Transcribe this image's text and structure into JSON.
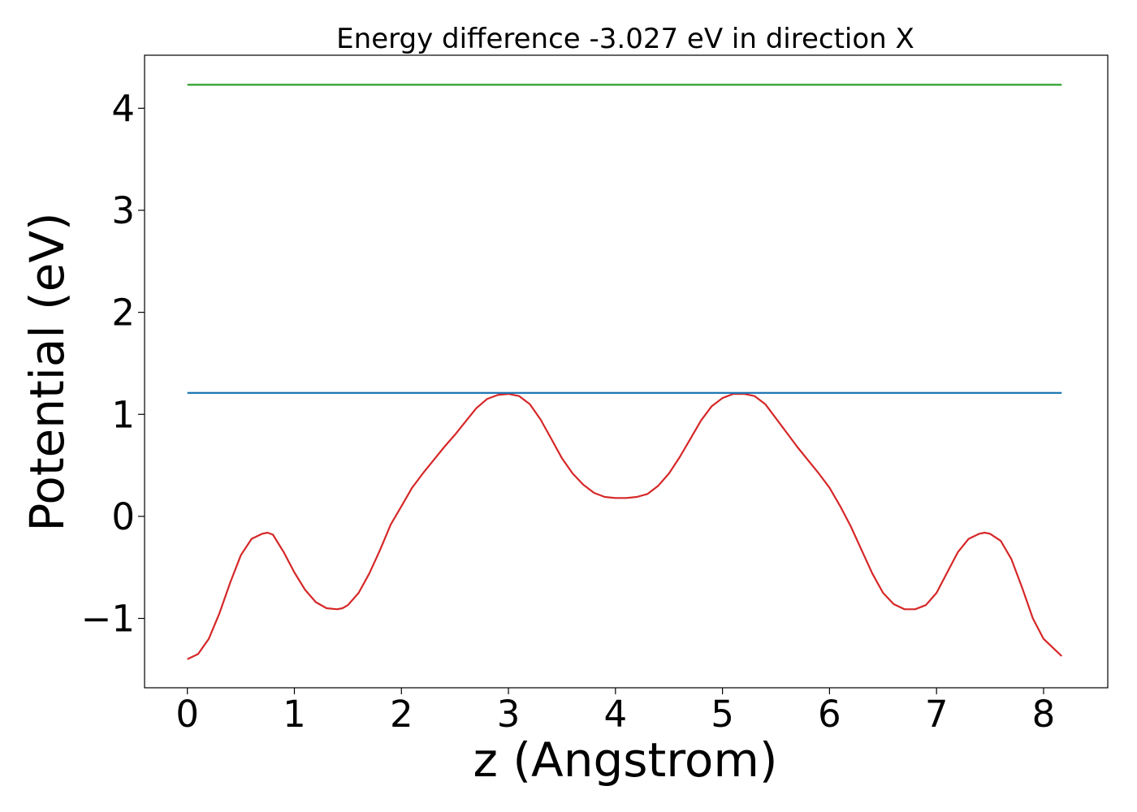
{
  "chart_data": {
    "type": "line",
    "title": "Energy difference -3.027 eV in direction X",
    "xlabel": "z (Angstrom)",
    "ylabel": "Potential (eV)",
    "xlim": [
      -0.4,
      8.6
    ],
    "ylim": [
      -1.68,
      4.52
    ],
    "xticks": [
      0,
      1,
      2,
      3,
      4,
      5,
      6,
      7,
      8
    ],
    "xtick_labels": [
      "0",
      "1",
      "2",
      "3",
      "4",
      "5",
      "6",
      "7",
      "8"
    ],
    "yticks": [
      -1,
      0,
      1,
      2,
      3,
      4
    ],
    "ytick_labels": [
      "−1",
      "0",
      "1",
      "2",
      "3",
      "4"
    ],
    "grid": false,
    "series": [
      {
        "color": "#d62728",
        "x": [
          0,
          0.1,
          0.2,
          0.3,
          0.4,
          0.5,
          0.6,
          0.7,
          0.75,
          0.8,
          0.9,
          1.0,
          1.1,
          1.2,
          1.3,
          1.4,
          1.45,
          1.5,
          1.6,
          1.7,
          1.8,
          1.9,
          2.0,
          2.1,
          2.2,
          2.3,
          2.4,
          2.5,
          2.6,
          2.7,
          2.8,
          2.9,
          3.0,
          3.1,
          3.2,
          3.3,
          3.4,
          3.5,
          3.6,
          3.7,
          3.8,
          3.9,
          4.0,
          4.1,
          4.2,
          4.3,
          4.4,
          4.5,
          4.6,
          4.7,
          4.8,
          4.9,
          5.0,
          5.1,
          5.2,
          5.3,
          5.4,
          5.5,
          5.6,
          5.7,
          5.8,
          5.9,
          6.0,
          6.1,
          6.2,
          6.3,
          6.4,
          6.5,
          6.6,
          6.7,
          6.8,
          6.9,
          7.0,
          7.1,
          7.2,
          7.3,
          7.4,
          7.45,
          7.5,
          7.6,
          7.7,
          7.8,
          7.9,
          8.0,
          8.1,
          8.17
        ],
        "y": [
          -1.4,
          -1.35,
          -1.2,
          -0.95,
          -0.65,
          -0.38,
          -0.22,
          -0.17,
          -0.16,
          -0.18,
          -0.35,
          -0.55,
          -0.72,
          -0.84,
          -0.9,
          -0.91,
          -0.9,
          -0.87,
          -0.75,
          -0.56,
          -0.33,
          -0.08,
          0.1,
          0.28,
          0.42,
          0.55,
          0.68,
          0.8,
          0.93,
          1.06,
          1.15,
          1.19,
          1.2,
          1.18,
          1.1,
          0.95,
          0.76,
          0.57,
          0.42,
          0.31,
          0.23,
          0.19,
          0.18,
          0.18,
          0.19,
          0.22,
          0.3,
          0.42,
          0.58,
          0.76,
          0.94,
          1.08,
          1.16,
          1.2,
          1.2,
          1.18,
          1.1,
          0.96,
          0.82,
          0.68,
          0.55,
          0.42,
          0.28,
          0.1,
          -0.1,
          -0.33,
          -0.56,
          -0.75,
          -0.86,
          -0.91,
          -0.91,
          -0.87,
          -0.75,
          -0.55,
          -0.35,
          -0.22,
          -0.17,
          -0.16,
          -0.17,
          -0.24,
          -0.42,
          -0.7,
          -1.0,
          -1.2,
          -1.3,
          -1.37
        ]
      },
      {
        "color": "#1f77b4",
        "x": [
          0,
          8.17
        ],
        "y": [
          1.21,
          1.21
        ]
      },
      {
        "color": "#2ca02c",
        "x": [
          0,
          8.17
        ],
        "y": [
          4.23,
          4.23
        ]
      }
    ]
  }
}
